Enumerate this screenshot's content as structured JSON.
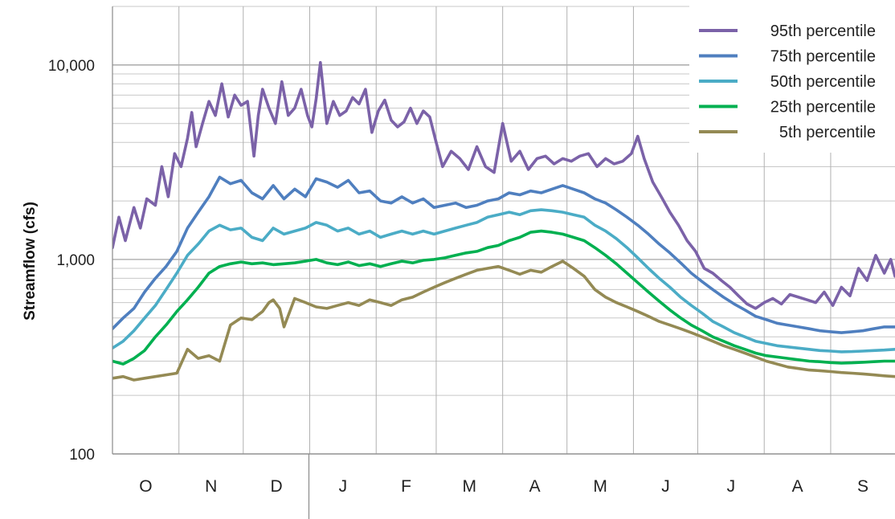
{
  "chart_data": {
    "type": "line",
    "title": "",
    "xlabel": "",
    "ylabel": "Streamflow (cfs)",
    "y_scale": "log",
    "ylim": [
      100,
      20000
    ],
    "y_ticks": [
      {
        "value": 100,
        "label": "100"
      },
      {
        "value": 1000,
        "label": "1,000"
      },
      {
        "value": 10000,
        "label": "10,000"
      }
    ],
    "x_unit": "day of water year (Oct 1 = day 0)",
    "xlim": [
      0,
      365
    ],
    "months": [
      {
        "label": "O",
        "start": 0
      },
      {
        "label": "N",
        "start": 31
      },
      {
        "label": "D",
        "start": 61
      },
      {
        "label": "J",
        "start": 92
      },
      {
        "label": "F",
        "start": 123
      },
      {
        "label": "M",
        "start": 151
      },
      {
        "label": "A",
        "start": 182
      },
      {
        "label": "M",
        "start": 212
      },
      {
        "label": "J",
        "start": 243
      },
      {
        "label": "J",
        "start": 273
      },
      {
        "label": "A",
        "start": 304
      },
      {
        "label": "S",
        "start": 335
      }
    ],
    "grid": true,
    "legend_position": "top-right",
    "series": [
      {
        "name": "95th percentile",
        "color": "#7b62a8",
        "x": [
          0,
          3,
          6,
          10,
          13,
          16,
          20,
          23,
          26,
          29,
          32,
          35,
          37,
          39,
          42,
          45,
          48,
          51,
          54,
          57,
          60,
          63,
          66,
          68,
          70,
          73,
          76,
          79,
          82,
          85,
          88,
          91,
          93,
          95,
          97,
          100,
          103,
          106,
          109,
          112,
          115,
          118,
          121,
          124,
          127,
          130,
          133,
          136,
          139,
          142,
          145,
          148,
          151,
          154,
          158,
          162,
          166,
          170,
          174,
          178,
          182,
          186,
          190,
          194,
          198,
          202,
          206,
          210,
          214,
          218,
          222,
          226,
          230,
          234,
          238,
          242,
          245,
          248,
          252,
          256,
          260,
          264,
          268,
          272,
          276,
          280,
          284,
          288,
          292,
          296,
          300,
          304,
          308,
          312,
          316,
          320,
          324,
          328,
          332,
          336,
          340,
          344,
          348,
          352,
          356,
          360,
          363,
          365
        ],
        "values": [
          1150,
          1650,
          1250,
          1850,
          1450,
          2050,
          1900,
          3000,
          2100,
          3500,
          3000,
          4200,
          5700,
          3800,
          5000,
          6500,
          5500,
          8000,
          5400,
          7000,
          6200,
          6500,
          3400,
          5500,
          7500,
          6000,
          5000,
          8200,
          5500,
          6000,
          7500,
          5500,
          4800,
          6700,
          10300,
          5000,
          6500,
          5500,
          5800,
          6800,
          6300,
          7500,
          4500,
          5800,
          6600,
          5200,
          4800,
          5100,
          6000,
          5000,
          5800,
          5400,
          4000,
          3000,
          3600,
          3300,
          2900,
          3800,
          3000,
          2800,
          5000,
          3200,
          3600,
          2900,
          3300,
          3400,
          3100,
          3300,
          3200,
          3400,
          3500,
          3000,
          3300,
          3100,
          3200,
          3500,
          4300,
          3300,
          2500,
          2100,
          1750,
          1500,
          1250,
          1100,
          900,
          850,
          780,
          720,
          650,
          590,
          560,
          600,
          630,
          590,
          660,
          640,
          620,
          600,
          680,
          580,
          720,
          650,
          900,
          780,
          1050,
          850,
          1000,
          820
        ]
      },
      {
        "name": "75th percentile",
        "color": "#4f7fbf",
        "x": [
          0,
          5,
          10,
          15,
          20,
          25,
          30,
          35,
          40,
          45,
          50,
          55,
          60,
          65,
          70,
          75,
          80,
          85,
          90,
          95,
          100,
          105,
          110,
          115,
          120,
          125,
          130,
          135,
          140,
          145,
          150,
          155,
          160,
          165,
          170,
          175,
          180,
          185,
          190,
          195,
          200,
          205,
          210,
          215,
          220,
          225,
          230,
          235,
          240,
          245,
          250,
          255,
          260,
          265,
          270,
          275,
          280,
          285,
          290,
          295,
          300,
          305,
          310,
          315,
          320,
          325,
          330,
          335,
          340,
          345,
          350,
          355,
          360,
          365
        ],
        "values": [
          440,
          500,
          560,
          680,
          800,
          920,
          1100,
          1450,
          1750,
          2100,
          2650,
          2450,
          2550,
          2200,
          2050,
          2400,
          2050,
          2300,
          2100,
          2600,
          2500,
          2350,
          2550,
          2200,
          2250,
          2000,
          1950,
          2100,
          1950,
          2050,
          1850,
          1900,
          1950,
          1850,
          1900,
          2000,
          2050,
          2200,
          2150,
          2250,
          2200,
          2300,
          2400,
          2300,
          2200,
          2050,
          1950,
          1800,
          1650,
          1500,
          1350,
          1200,
          1080,
          960,
          850,
          770,
          700,
          640,
          590,
          550,
          510,
          490,
          470,
          460,
          450,
          440,
          430,
          425,
          420,
          425,
          430,
          440,
          450,
          450
        ]
      },
      {
        "name": "50th percentile",
        "color": "#4bacc6",
        "x": [
          0,
          5,
          10,
          15,
          20,
          25,
          30,
          35,
          40,
          45,
          50,
          55,
          60,
          65,
          70,
          75,
          80,
          85,
          90,
          95,
          100,
          105,
          110,
          115,
          120,
          125,
          130,
          135,
          140,
          145,
          150,
          155,
          160,
          165,
          170,
          175,
          180,
          185,
          190,
          195,
          200,
          205,
          210,
          215,
          220,
          225,
          230,
          235,
          240,
          245,
          250,
          255,
          260,
          265,
          270,
          275,
          280,
          285,
          290,
          295,
          300,
          305,
          310,
          315,
          320,
          325,
          330,
          335,
          340,
          345,
          350,
          355,
          360,
          365
        ],
        "values": [
          350,
          380,
          430,
          500,
          580,
          700,
          850,
          1050,
          1200,
          1400,
          1500,
          1420,
          1450,
          1300,
          1250,
          1450,
          1350,
          1400,
          1450,
          1550,
          1500,
          1400,
          1450,
          1350,
          1400,
          1300,
          1350,
          1400,
          1350,
          1400,
          1350,
          1400,
          1450,
          1500,
          1550,
          1650,
          1700,
          1750,
          1700,
          1780,
          1800,
          1780,
          1750,
          1700,
          1650,
          1500,
          1400,
          1280,
          1150,
          1020,
          900,
          800,
          720,
          640,
          580,
          530,
          480,
          450,
          420,
          400,
          380,
          370,
          360,
          355,
          350,
          345,
          340,
          338,
          335,
          336,
          338,
          340,
          342,
          345
        ]
      },
      {
        "name": "25th percentile",
        "color": "#00b050",
        "x": [
          0,
          5,
          10,
          15,
          20,
          25,
          30,
          35,
          40,
          45,
          50,
          55,
          60,
          65,
          70,
          75,
          80,
          85,
          90,
          95,
          100,
          105,
          110,
          115,
          120,
          125,
          130,
          135,
          140,
          145,
          150,
          155,
          160,
          165,
          170,
          175,
          180,
          185,
          190,
          195,
          200,
          205,
          210,
          215,
          220,
          225,
          230,
          235,
          240,
          245,
          250,
          255,
          260,
          265,
          270,
          275,
          280,
          285,
          290,
          295,
          300,
          305,
          310,
          315,
          320,
          325,
          330,
          335,
          340,
          345,
          350,
          355,
          360,
          365
        ],
        "values": [
          300,
          290,
          310,
          340,
          400,
          460,
          540,
          620,
          720,
          850,
          920,
          950,
          970,
          950,
          960,
          940,
          950,
          960,
          980,
          1000,
          960,
          940,
          970,
          930,
          950,
          920,
          950,
          980,
          960,
          990,
          1000,
          1020,
          1050,
          1080,
          1100,
          1150,
          1180,
          1250,
          1300,
          1380,
          1400,
          1380,
          1350,
          1300,
          1250,
          1150,
          1050,
          950,
          850,
          760,
          680,
          610,
          550,
          500,
          460,
          430,
          400,
          380,
          360,
          345,
          330,
          320,
          315,
          310,
          305,
          300,
          298,
          295,
          293,
          294,
          296,
          298,
          300,
          300
        ]
      },
      {
        "name": "5th percentile",
        "color": "#948a54",
        "x": [
          0,
          5,
          10,
          15,
          20,
          25,
          30,
          35,
          40,
          45,
          50,
          55,
          60,
          65,
          70,
          73,
          75,
          78,
          80,
          85,
          90,
          95,
          100,
          105,
          110,
          115,
          120,
          125,
          130,
          135,
          140,
          145,
          150,
          155,
          160,
          165,
          170,
          175,
          180,
          185,
          190,
          195,
          200,
          205,
          210,
          215,
          220,
          225,
          230,
          235,
          240,
          245,
          250,
          255,
          260,
          265,
          270,
          275,
          280,
          285,
          290,
          295,
          300,
          305,
          310,
          315,
          320,
          325,
          330,
          335,
          340,
          345,
          350,
          355,
          360,
          365
        ],
        "values": [
          245,
          250,
          240,
          245,
          250,
          255,
          260,
          345,
          310,
          320,
          300,
          460,
          500,
          490,
          540,
          600,
          620,
          560,
          450,
          630,
          600,
          570,
          560,
          580,
          600,
          580,
          620,
          600,
          580,
          620,
          640,
          680,
          720,
          760,
          800,
          840,
          880,
          900,
          920,
          880,
          840,
          880,
          860,
          920,
          980,
          900,
          820,
          700,
          640,
          600,
          570,
          540,
          510,
          480,
          460,
          440,
          420,
          400,
          380,
          360,
          345,
          330,
          315,
          300,
          290,
          280,
          275,
          270,
          268,
          265,
          262,
          260,
          258,
          255,
          252,
          250
        ]
      }
    ]
  }
}
